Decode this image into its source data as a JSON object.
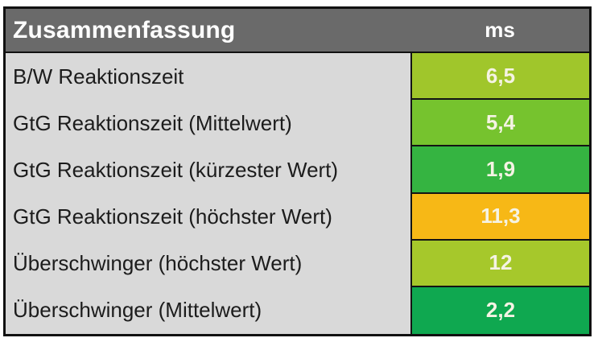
{
  "table": {
    "header": {
      "title": "Zusammenfassung",
      "unit": "ms",
      "background": "#6a6a6a",
      "text_color": "#ffffff"
    },
    "label_background": "#d9d9d9",
    "value_text_color": "#f5f3e4",
    "rows": [
      {
        "label": "B/W Reaktionszeit",
        "value": "6,5",
        "color": "#a0c62b"
      },
      {
        "label": "GtG Reaktionszeit (Mittelwert)",
        "value": "5,4",
        "color": "#76c32e"
      },
      {
        "label": "GtG Reaktionszeit (kürzester Wert)",
        "value": "1,9",
        "color": "#35b441"
      },
      {
        "label": "GtG Reaktionszeit (höchster Wert)",
        "value": "11,3",
        "color": "#f7b816"
      },
      {
        "label": "Überschwinger (höchster Wert)",
        "value": "12",
        "color": "#a6c82b"
      },
      {
        "label": "Überschwinger (Mittelwert)",
        "value": "2,2",
        "color": "#0fa850"
      }
    ]
  },
  "chart_data": {
    "type": "table",
    "title": "Zusammenfassung",
    "columns": [
      "Zusammenfassung",
      "ms"
    ],
    "rows": [
      {
        "metric": "B/W Reaktionszeit",
        "ms": 6.5,
        "cell_color": "#a0c62b"
      },
      {
        "metric": "GtG Reaktionszeit (Mittelwert)",
        "ms": 5.4,
        "cell_color": "#76c32e"
      },
      {
        "metric": "GtG Reaktionszeit (kürzester Wert)",
        "ms": 1.9,
        "cell_color": "#35b441"
      },
      {
        "metric": "GtG Reaktionszeit (höchster Wert)",
        "ms": 11.3,
        "cell_color": "#f7b816"
      },
      {
        "metric": "Überschwinger (höchster Wert)",
        "ms": 12,
        "cell_color": "#a6c82b"
      },
      {
        "metric": "Überschwinger (Mittelwert)",
        "ms": 2.2,
        "cell_color": "#0fa850"
      }
    ],
    "notes": "Monitor response-time summary table; value cells are conditionally colored from green (good) to amber (worse). Decimal comma formatting (German)."
  }
}
